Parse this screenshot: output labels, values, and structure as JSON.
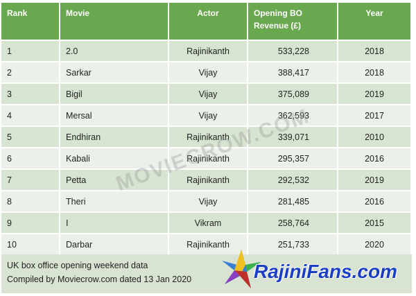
{
  "headers": [
    "Rank",
    "Movie",
    "Actor",
    "Opening BO Revenue (£)",
    "Year"
  ],
  "rows": [
    [
      "1",
      "2.0",
      "Rajinikanth",
      "533,228",
      "2018"
    ],
    [
      "2",
      "Sarkar",
      "Vijay",
      "388,417",
      "2018"
    ],
    [
      "3",
      "Bigil",
      "Vijay",
      "375,089",
      "2019"
    ],
    [
      "4",
      "Mersal",
      "Vijay",
      "362,593",
      "2017"
    ],
    [
      "5",
      "Endhiran",
      "Rajinikanth",
      "339,071",
      "2010"
    ],
    [
      "6",
      "Kabali",
      "Rajinikanth",
      "295,357",
      "2016"
    ],
    [
      "7",
      "Petta",
      "Rajinikanth",
      "292,532",
      "2019"
    ],
    [
      "8",
      "Theri",
      "Vijay",
      "281,485",
      "2016"
    ],
    [
      "9",
      "I",
      "Vikram",
      "258,764",
      "2015"
    ],
    [
      "10",
      "Darbar",
      "Rajinikanth",
      "251,733",
      "2020"
    ]
  ],
  "footer": {
    "line1": "UK box office opening weekend data",
    "line2": "Compiled by Moviecrow.com dated 13 Jan 2020"
  },
  "watermark": "MOVIECROW.COM",
  "logo": "RajiniFans.com",
  "colors": {
    "header": "#6aa84f",
    "row_odd": "#d7e4d1",
    "row_even": "#ebf1e8"
  }
}
